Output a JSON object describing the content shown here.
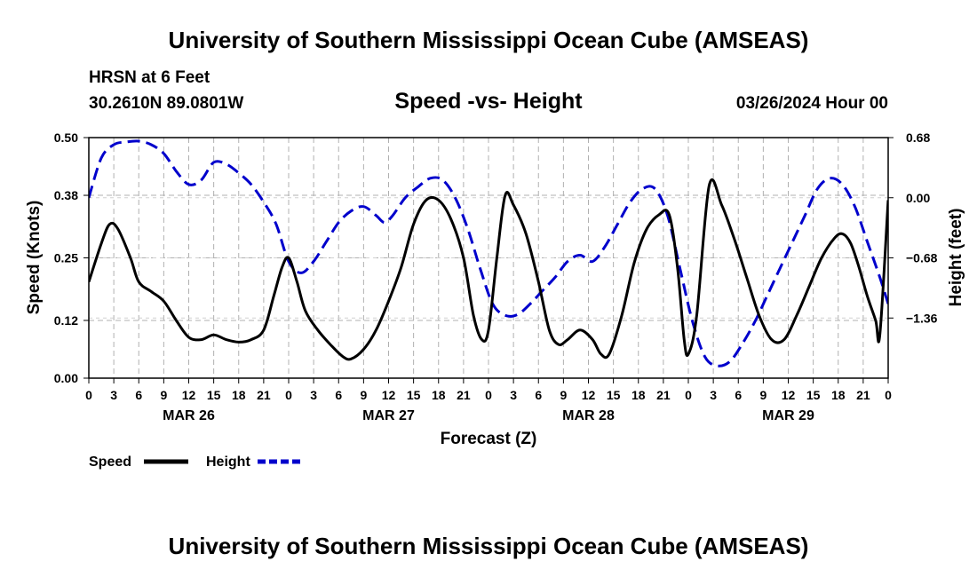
{
  "header": {
    "title": "University of Southern Mississippi Ocean Cube (AMSEAS)",
    "station": "HRSN at 6 Feet",
    "coords": "30.2610N  89.0801W",
    "subtitle": "Speed -vs- Height",
    "datetime": "03/26/2024 Hour 00"
  },
  "footer": {
    "title": "University of Southern Mississippi Ocean Cube (AMSEAS)"
  },
  "colors": {
    "speed": "#000000",
    "height": "#0000cc",
    "grid": "#b0b0b0"
  },
  "chart_data": {
    "type": "line",
    "title": "Speed -vs- Height",
    "xlabel": "Forecast (Z)",
    "ylabel": "Speed (Knots)",
    "y2label": "Height (feet)",
    "xlim": [
      0,
      96
    ],
    "ylim": [
      0,
      0.5
    ],
    "y2lim": [
      -2.04,
      0.68
    ],
    "yticks": [
      "0.00",
      "0.12",
      "0.25",
      "0.38",
      "0.50"
    ],
    "y2ticks": [
      "0.68",
      "0.00",
      "-0.68",
      "-1.36"
    ],
    "xtick_labels": [
      "0",
      "3",
      "6",
      "9",
      "12",
      "15",
      "18",
      "21",
      "0",
      "3",
      "6",
      "9",
      "12",
      "15",
      "18",
      "21",
      "0",
      "3",
      "6",
      "9",
      "12",
      "15",
      "18",
      "21",
      "0",
      "3",
      "6",
      "9",
      "12",
      "15",
      "18",
      "21",
      "0"
    ],
    "date_labels": [
      "MAR 26",
      "MAR 27",
      "MAR 28",
      "MAR 29"
    ],
    "legend": [
      {
        "name": "Speed",
        "style": "solid"
      },
      {
        "name": "Height",
        "style": "dashed"
      }
    ],
    "series": [
      {
        "name": "Speed",
        "axis": "left",
        "x": [
          0,
          1.5,
          2.5,
          3.5,
          5,
          6,
          7.5,
          9,
          10.5,
          12,
          13.5,
          15,
          16.5,
          18,
          19.5,
          21,
          22.2,
          23.2,
          24,
          25,
          26,
          27.5,
          29,
          30.5,
          31.5,
          33,
          34.5,
          36,
          37.5,
          39,
          40.5,
          42,
          43.5,
          45,
          46.2,
          47.2,
          48,
          49,
          50,
          51,
          52.5,
          54,
          55.3,
          56.4,
          57.5,
          59,
          60.5,
          61.5,
          62.5,
          64,
          65.5,
          67,
          68.5,
          69.7,
          70.7,
          71.5,
          72,
          73,
          74.5,
          76,
          77.5,
          79,
          80.5,
          82,
          83.5,
          85,
          86.5,
          88,
          89.5,
          90.5,
          91.5,
          92.5,
          93.5,
          94.5,
          96
        ],
        "values": [
          0.2,
          0.28,
          0.32,
          0.31,
          0.25,
          0.2,
          0.18,
          0.16,
          0.12,
          0.085,
          0.08,
          0.09,
          0.08,
          0.075,
          0.08,
          0.1,
          0.17,
          0.23,
          0.25,
          0.2,
          0.14,
          0.1,
          0.07,
          0.045,
          0.04,
          0.06,
          0.1,
          0.16,
          0.23,
          0.32,
          0.37,
          0.37,
          0.33,
          0.25,
          0.13,
          0.08,
          0.1,
          0.25,
          0.38,
          0.36,
          0.3,
          0.2,
          0.1,
          0.07,
          0.08,
          0.1,
          0.08,
          0.05,
          0.05,
          0.13,
          0.24,
          0.31,
          0.34,
          0.34,
          0.23,
          0.08,
          0.05,
          0.13,
          0.4,
          0.36,
          0.29,
          0.21,
          0.13,
          0.08,
          0.08,
          0.13,
          0.19,
          0.25,
          0.29,
          0.3,
          0.28,
          0.23,
          0.17,
          0.12,
          0.08
        ],
        "extra": [
          [
            95,
            0.09
          ],
          [
            96,
            0.37
          ]
        ]
      },
      {
        "name": "Height",
        "axis": "right",
        "x": [
          0,
          1.5,
          3,
          4.5,
          6,
          7.5,
          9,
          10.5,
          12,
          13.5,
          15,
          16.5,
          18,
          19.5,
          21,
          22.5,
          24,
          25.5,
          27,
          28.5,
          30,
          31.5,
          33,
          34.5,
          35.5,
          36.5,
          38,
          39.5,
          41,
          42.5,
          44,
          45.5,
          47,
          48.5,
          50,
          51.5,
          53,
          54.5,
          56,
          57.5,
          59,
          60.5,
          62,
          63.5,
          65,
          66.5,
          68,
          69.5,
          71,
          72.5,
          74,
          75.5,
          77,
          78.5,
          80,
          81.5,
          83,
          84.5,
          86,
          87.5,
          89,
          90.5,
          92,
          93.5,
          95,
          96
        ],
        "values": [
          0.0,
          0.45,
          0.6,
          0.63,
          0.64,
          0.6,
          0.5,
          0.3,
          0.15,
          0.2,
          0.4,
          0.38,
          0.28,
          0.15,
          -0.05,
          -0.3,
          -0.72,
          -0.85,
          -0.72,
          -0.5,
          -0.28,
          -0.15,
          -0.1,
          -0.2,
          -0.28,
          -0.2,
          0.0,
          0.12,
          0.22,
          0.2,
          0.0,
          -0.35,
          -0.8,
          -1.2,
          -1.33,
          -1.32,
          -1.2,
          -1.05,
          -0.9,
          -0.72,
          -0.65,
          -0.72,
          -0.55,
          -0.3,
          -0.05,
          0.1,
          0.1,
          -0.2,
          -0.8,
          -1.4,
          -1.8,
          -1.9,
          -1.85,
          -1.65,
          -1.4,
          -1.1,
          -0.8,
          -0.5,
          -0.2,
          0.1,
          0.22,
          0.15,
          -0.1,
          -0.5,
          -0.9,
          -1.2
        ]
      }
    ]
  }
}
